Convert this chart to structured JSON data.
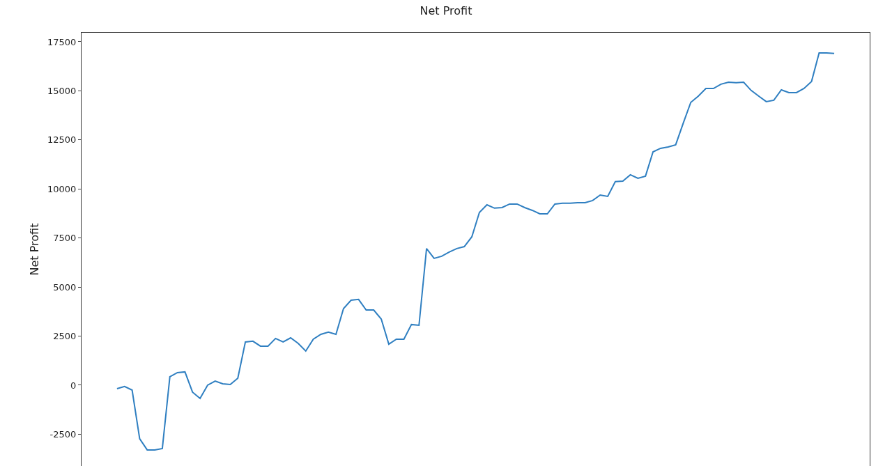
{
  "chart_data": {
    "type": "line",
    "title": "Net Profit",
    "ylabel": "Net Profit",
    "categories": [
      null,
      null,
      null,
      null,
      null,
      null,
      null,
      null,
      null,
      null,
      null,
      null,
      null,
      null,
      null,
      null,
      null,
      null,
      null,
      null,
      null,
      null,
      null,
      null,
      null,
      null,
      null,
      null,
      null,
      null,
      null,
      null,
      null,
      null,
      null,
      null,
      null,
      null,
      null,
      null,
      null,
      null,
      null,
      null,
      null,
      null,
      null,
      null,
      null,
      null,
      null,
      null,
      null,
      null,
      null,
      null,
      null,
      null,
      null,
      null,
      null,
      null,
      null,
      null,
      null,
      null,
      null,
      null,
      null,
      null,
      null,
      null,
      null,
      null,
      null,
      null,
      null,
      null,
      null,
      null,
      null,
      null,
      null,
      null,
      null,
      null,
      null,
      null,
      null,
      null,
      null,
      null,
      null,
      null,
      null,
      null
    ],
    "series": [
      {
        "color": "#2f7fc1",
        "values": [
          -180,
          -70,
          -250,
          -2730,
          -3300,
          -3300,
          -3230,
          430,
          640,
          675,
          -355,
          -675,
          0,
          210,
          70,
          35,
          355,
          2200,
          2240,
          1990,
          1990,
          2380,
          2200,
          2410,
          2130,
          1740,
          2340,
          2590,
          2700,
          2590,
          3900,
          4330,
          4370,
          3830,
          3830,
          3370,
          2090,
          2340,
          2340,
          3090,
          3050,
          6960,
          6460,
          6570,
          6780,
          6960,
          7060,
          7560,
          8800,
          9190,
          9020,
          9050,
          9230,
          9230,
          9050,
          8910,
          8730,
          8730,
          9230,
          9270,
          9270,
          9300,
          9300,
          9410,
          9690,
          9620,
          10370,
          10400,
          10720,
          10540,
          10650,
          11890,
          12070,
          12140,
          12250,
          13350,
          14410,
          14730,
          15120,
          15120,
          15340,
          15440,
          15410,
          15440,
          15020,
          14730,
          14450,
          14520,
          15050,
          14910,
          14910,
          15120,
          15480,
          16930,
          16930,
          16900
        ]
      }
    ],
    "ylim": [
      -4120,
      17960
    ],
    "yticks": [
      -2500,
      0,
      2500,
      5000,
      7500,
      10000,
      12500,
      15000,
      17500
    ],
    "legend": false,
    "tick_labels": "y"
  }
}
